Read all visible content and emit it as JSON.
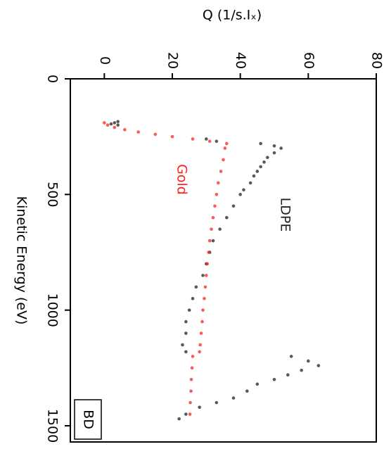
{
  "chart_data": {
    "type": "scatter",
    "title": "Q (1/s.Iₓ)",
    "xlabel": "Kinetic Energy (eV)",
    "annotation": "BD",
    "xlim": [
      0,
      1570
    ],
    "xticks": [
      0,
      500,
      1000,
      1500
    ],
    "ylim": [
      -10,
      80
    ],
    "yticks": [
      0,
      20,
      40,
      60,
      80
    ],
    "series": [
      {
        "name": "LDPE",
        "color": "#222222",
        "x": [
          185,
          190,
          195,
          200,
          260,
          270,
          280,
          290,
          300,
          320,
          340,
          360,
          380,
          400,
          420,
          450,
          480,
          500,
          550,
          600,
          650,
          700,
          750,
          800,
          850,
          900,
          950,
          1000,
          1050,
          1100,
          1150,
          1180,
          1200,
          1220,
          1240,
          1260,
          1280,
          1300,
          1320,
          1350,
          1380,
          1400,
          1420,
          1450,
          1470
        ],
        "values": [
          4,
          3,
          2,
          4,
          30,
          33,
          46,
          50,
          52,
          50,
          48,
          47,
          46,
          45,
          44,
          43,
          41,
          40,
          38,
          36,
          34,
          32,
          31,
          30,
          29,
          27,
          26,
          25,
          24,
          24,
          23,
          24,
          55,
          60,
          63,
          58,
          54,
          50,
          45,
          42,
          38,
          33,
          28,
          24,
          22
        ]
      },
      {
        "name": "Gold",
        "color": "#ff2020",
        "x": [
          190,
          200,
          210,
          220,
          230,
          240,
          250,
          260,
          270,
          280,
          300,
          350,
          400,
          450,
          500,
          550,
          600,
          650,
          700,
          750,
          800,
          850,
          900,
          950,
          1000,
          1050,
          1100,
          1150,
          1180,
          1200,
          1250,
          1300,
          1350,
          1400,
          1450
        ],
        "values": [
          0,
          1,
          3,
          6,
          10,
          15,
          20,
          26,
          31,
          36,
          35.5,
          35,
          34.3,
          33.5,
          33,
          32.5,
          32,
          31.5,
          31,
          30.7,
          30.3,
          30,
          29.7,
          29.4,
          29,
          28.8,
          28.5,
          28.2,
          28,
          26,
          25.8,
          25.6,
          25.5,
          25.3,
          25.2
        ]
      }
    ]
  }
}
